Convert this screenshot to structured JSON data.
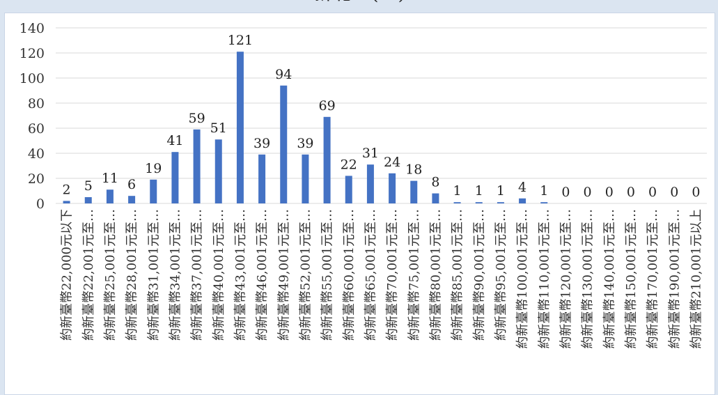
{
  "chart_data": {
    "type": "bar",
    "title": "…新北…(…)…",
    "xlabel": "",
    "ylabel": "",
    "ylim": [
      0,
      140
    ],
    "yticks": [
      0,
      20,
      40,
      60,
      80,
      100,
      120,
      140
    ],
    "grid": true,
    "bar_color": "#4472c4",
    "categories": [
      "約新臺幣22,000元以下",
      "約新臺幣22,001元至…",
      "約新臺幣25,001元至…",
      "約新臺幣28,001元至…",
      "約新臺幣31,001元至…",
      "約新臺幣34,001元至…",
      "約新臺幣37,001元至…",
      "約新臺幣40,001元至…",
      "約新臺幣43,001元至…",
      "約新臺幣46,001元至…",
      "約新臺幣49,001元至…",
      "約新臺幣52,001元至…",
      "約新臺幣55,001元至…",
      "約新臺幣60,001元至…",
      "約新臺幣65,001元至…",
      "約新臺幣70,001元至…",
      "約新臺幣75,001元至…",
      "約新臺幣80,001元至…",
      "約新臺幣85,001元至…",
      "約新臺幣90,001元至…",
      "約新臺幣95,001元至…",
      "約新臺幣100,001元至…",
      "約新臺幣110,001元至…",
      "約新臺幣120,001元至…",
      "約新臺幣130,001元至…",
      "約新臺幣140,001元至…",
      "約新臺幣150,001元至…",
      "約新臺幣170,001元至…",
      "約新臺幣190,001元至…",
      "約新臺幣210,001元以上"
    ],
    "values": [
      2,
      5,
      11,
      6,
      19,
      41,
      59,
      51,
      121,
      39,
      94,
      39,
      69,
      22,
      31,
      24,
      18,
      8,
      1,
      1,
      1,
      4,
      1,
      0,
      0,
      0,
      0,
      0,
      0,
      0
    ]
  }
}
